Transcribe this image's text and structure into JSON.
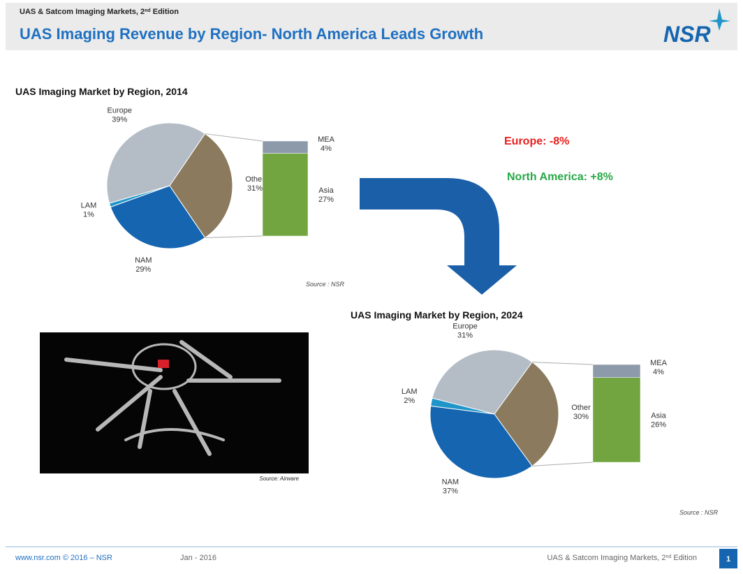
{
  "header": {
    "series_title": {
      "text": "UAS & Satcom Imaging Markets, 2",
      "sup": "nd",
      "after": " Edition"
    },
    "title": "UAS Imaging Revenue by Region- North America Leads Growth",
    "logo": "NSR"
  },
  "chart_data": [
    {
      "type": "pie",
      "title": "UAS Imaging Market by Region, 2014",
      "categories": [
        "Europe",
        "LAM",
        "NAM",
        "Other"
      ],
      "values": [
        39,
        1,
        29,
        31
      ],
      "value_labels": [
        "39%",
        "1%",
        "29%",
        "31%"
      ],
      "colors": [
        "#b4bcc6",
        "#1f95c9",
        "#1565b0",
        "#8b7a5e"
      ],
      "breakdown": {
        "categories": [
          "MEA",
          "Asia"
        ],
        "values": [
          4,
          27
        ],
        "value_labels": [
          "4%",
          "27%"
        ],
        "colors": [
          "#8d9aaa",
          "#72a540"
        ]
      },
      "source": "Source : NSR"
    },
    {
      "type": "pie",
      "title": "UAS Imaging  Market by Region, 2024",
      "categories": [
        "Europe",
        "LAM",
        "NAM",
        "Other"
      ],
      "values": [
        31,
        2,
        37,
        30
      ],
      "value_labels": [
        "31%",
        "2%",
        "37%",
        "30%"
      ],
      "colors": [
        "#b4bcc6",
        "#1f95c9",
        "#1565b0",
        "#8b7a5e"
      ],
      "breakdown": {
        "categories": [
          "MEA",
          "Asia"
        ],
        "values": [
          4,
          26
        ],
        "value_labels": [
          "4%",
          "26%"
        ],
        "colors": [
          "#8d9aaa",
          "#72a540"
        ]
      },
      "source": "Source : NSR"
    }
  ],
  "annotations": [
    {
      "text": "Europe: -8%",
      "color": "#e8201e"
    },
    {
      "text": "North America: +8%",
      "color": "#27a846"
    }
  ],
  "photo": {
    "source": "Source: Airware"
  },
  "footer": {
    "site": "www.nsr.com © 2016 – NSR",
    "date": "Jan - 2016",
    "series_title": {
      "text": "UAS & Satcom Imaging Markets, 2",
      "sup": "nd",
      "after": " Edition"
    },
    "page": "1"
  }
}
